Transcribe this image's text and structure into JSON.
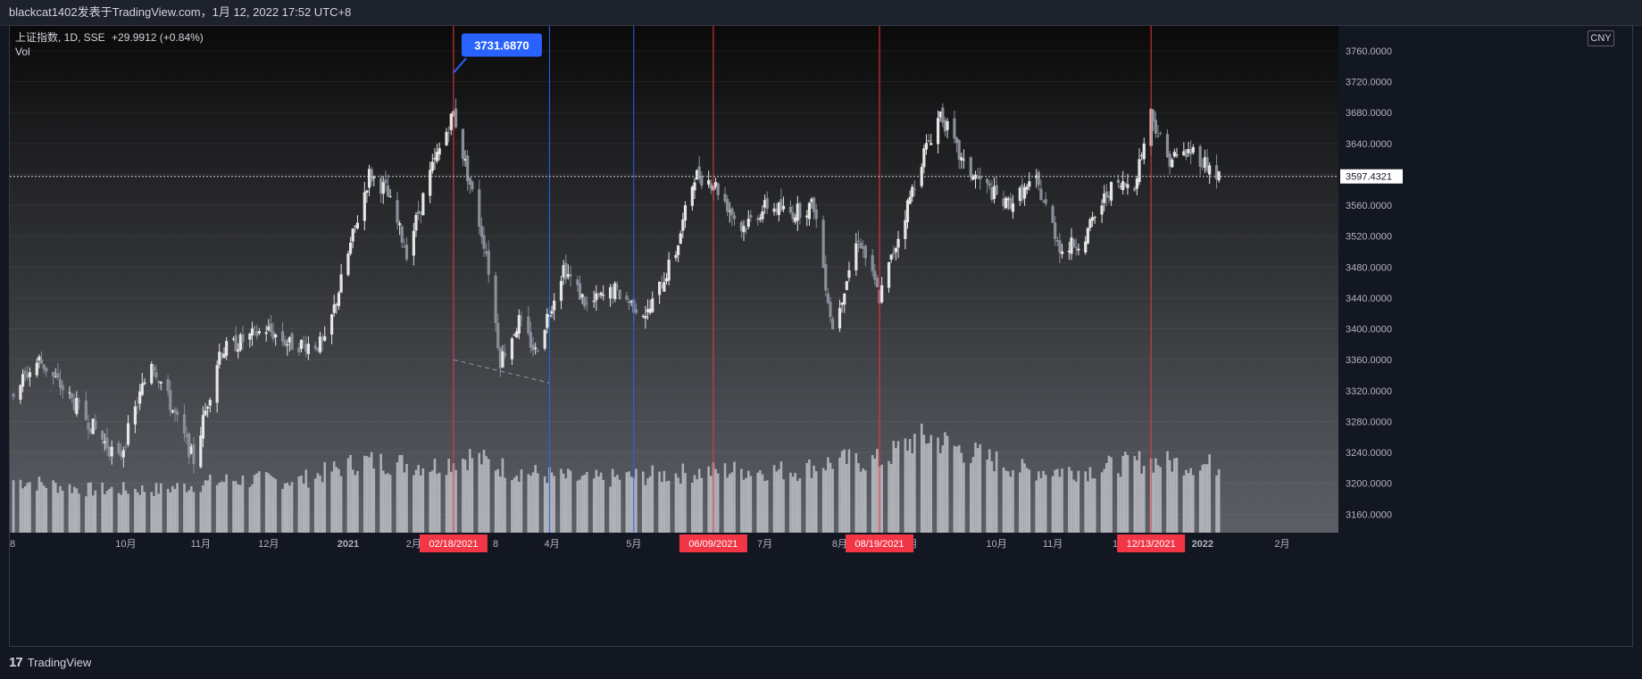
{
  "header": {
    "publish_line": "blackcat1402发表于TradingView.com，1月 12, 2022 17:52 UTC+8"
  },
  "legend": {
    "symbol": "上证指数, 1D, SSE",
    "change": "+29.9912 (+0.84%)",
    "volume_label": "Vol"
  },
  "currency": "CNY",
  "footer": {
    "brand": "TradingView"
  },
  "colors": {
    "up_candle": "#e6e6e6",
    "down_candle": "#8a8e99",
    "red_line": "#f23645",
    "blue_line": "#2962ff",
    "price_tag_bg": "#ffffff",
    "callout_bg": "#2962ff"
  },
  "chart_data": {
    "type": "candlestick",
    "y_axis": {
      "ticks": [
        "3760.0000",
        "3720.0000",
        "3680.0000",
        "3640.0000",
        "3600.0000",
        "3560.0000",
        "3520.0000",
        "3480.0000",
        "3440.0000",
        "3400.0000",
        "3360.0000",
        "3320.0000",
        "3280.0000",
        "3240.0000",
        "3200.0000",
        "3160.0000"
      ],
      "ylim": [
        3150,
        3775
      ],
      "current_price": "3597.4321"
    },
    "x_axis": {
      "ticks": [
        "8",
        "10月",
        "11月",
        "12月",
        "2021",
        "2月",
        "8",
        "4月",
        "5月",
        "7月",
        "8月",
        "9月",
        "10月",
        "11月",
        "12月",
        "2022",
        "2月"
      ],
      "bold_ticks": [
        "2021",
        "2022"
      ],
      "highlighted_dates": [
        "02/18/2021",
        "06/09/2021",
        "08/19/2021",
        "12/13/2021"
      ]
    },
    "callout": {
      "label": "3731.6870",
      "date": "02/18/2021",
      "value": 3731.687
    },
    "vertical_lines": [
      {
        "date": "02/18/2021",
        "color": "red"
      },
      {
        "date": "2021-03-31",
        "color": "blue"
      },
      {
        "date": "2021-05-06",
        "color": "blue"
      },
      {
        "date": "06/09/2021",
        "color": "red"
      },
      {
        "date": "08/19/2021",
        "color": "red"
      },
      {
        "date": "12/13/2021",
        "color": "red"
      }
    ],
    "trend_line": {
      "from": [
        "02/18/2021",
        3360
      ],
      "to": [
        "2021-03-31",
        3330
      ]
    },
    "price_anchors": [
      [
        "2020-08-14",
        3320
      ],
      [
        "2020-08-25",
        3360
      ],
      [
        "2020-09-10",
        3300
      ],
      [
        "2020-09-28",
        3230
      ],
      [
        "2020-10-12",
        3360
      ],
      [
        "2020-10-30",
        3230
      ],
      [
        "2020-11-10",
        3370
      ],
      [
        "2020-11-30",
        3400
      ],
      [
        "2020-12-10",
        3380
      ],
      [
        "2020-12-25",
        3380
      ],
      [
        "2021-01-06",
        3520
      ],
      [
        "2021-01-13",
        3600
      ],
      [
        "2021-01-20",
        3580
      ],
      [
        "2021-01-29",
        3500
      ],
      [
        "2021-02-08",
        3600
      ],
      [
        "2021-02-18",
        3680
      ],
      [
        "2021-02-24",
        3600
      ],
      [
        "2021-03-04",
        3500
      ],
      [
        "2021-03-10",
        3360
      ],
      [
        "2021-03-18",
        3410
      ],
      [
        "2021-03-25",
        3370
      ],
      [
        "2021-04-06",
        3480
      ],
      [
        "2021-04-16",
        3430
      ],
      [
        "2021-04-28",
        3450
      ],
      [
        "2021-05-06",
        3430
      ],
      [
        "2021-05-12",
        3420
      ],
      [
        "2021-05-24",
        3500
      ],
      [
        "2021-06-01",
        3600
      ],
      [
        "2021-06-09",
        3590
      ],
      [
        "2021-06-21",
        3530
      ],
      [
        "2021-07-02",
        3560
      ],
      [
        "2021-07-12",
        3550
      ],
      [
        "2021-07-22",
        3560
      ],
      [
        "2021-07-30",
        3400
      ],
      [
        "2021-08-10",
        3520
      ],
      [
        "2021-08-19",
        3440
      ],
      [
        "2021-08-27",
        3520
      ],
      [
        "2021-09-06",
        3620
      ],
      [
        "2021-09-14",
        3680
      ],
      [
        "2021-09-24",
        3610
      ],
      [
        "2021-10-12",
        3560
      ],
      [
        "2021-10-25",
        3590
      ],
      [
        "2021-11-05",
        3500
      ],
      [
        "2021-11-15",
        3520
      ],
      [
        "2021-11-25",
        3580
      ],
      [
        "2021-12-06",
        3590
      ],
      [
        "2021-12-13",
        3680
      ],
      [
        "2021-12-20",
        3620
      ],
      [
        "2021-12-31",
        3630
      ],
      [
        "2022-01-11",
        3597
      ]
    ],
    "volume_anchors": [
      [
        "2020-08-14",
        0.55
      ],
      [
        "2020-09-15",
        0.45
      ],
      [
        "2020-10-15",
        0.45
      ],
      [
        "2020-11-15",
        0.55
      ],
      [
        "2020-12-15",
        0.55
      ],
      [
        "2021-01-10",
        0.75
      ],
      [
        "2021-02-10",
        0.7
      ],
      [
        "2021-02-25",
        0.8
      ],
      [
        "2021-03-15",
        0.65
      ],
      [
        "2021-04-15",
        0.55
      ],
      [
        "2021-05-15",
        0.6
      ],
      [
        "2021-06-15",
        0.65
      ],
      [
        "2021-07-15",
        0.65
      ],
      [
        "2021-08-01",
        0.75
      ],
      [
        "2021-08-20",
        0.75
      ],
      [
        "2021-09-01",
        0.95
      ],
      [
        "2021-09-10",
        1.0
      ],
      [
        "2021-09-25",
        0.85
      ],
      [
        "2021-10-20",
        0.65
      ],
      [
        "2021-11-15",
        0.65
      ],
      [
        "2021-12-10",
        0.75
      ],
      [
        "2022-01-11",
        0.7
      ]
    ]
  }
}
